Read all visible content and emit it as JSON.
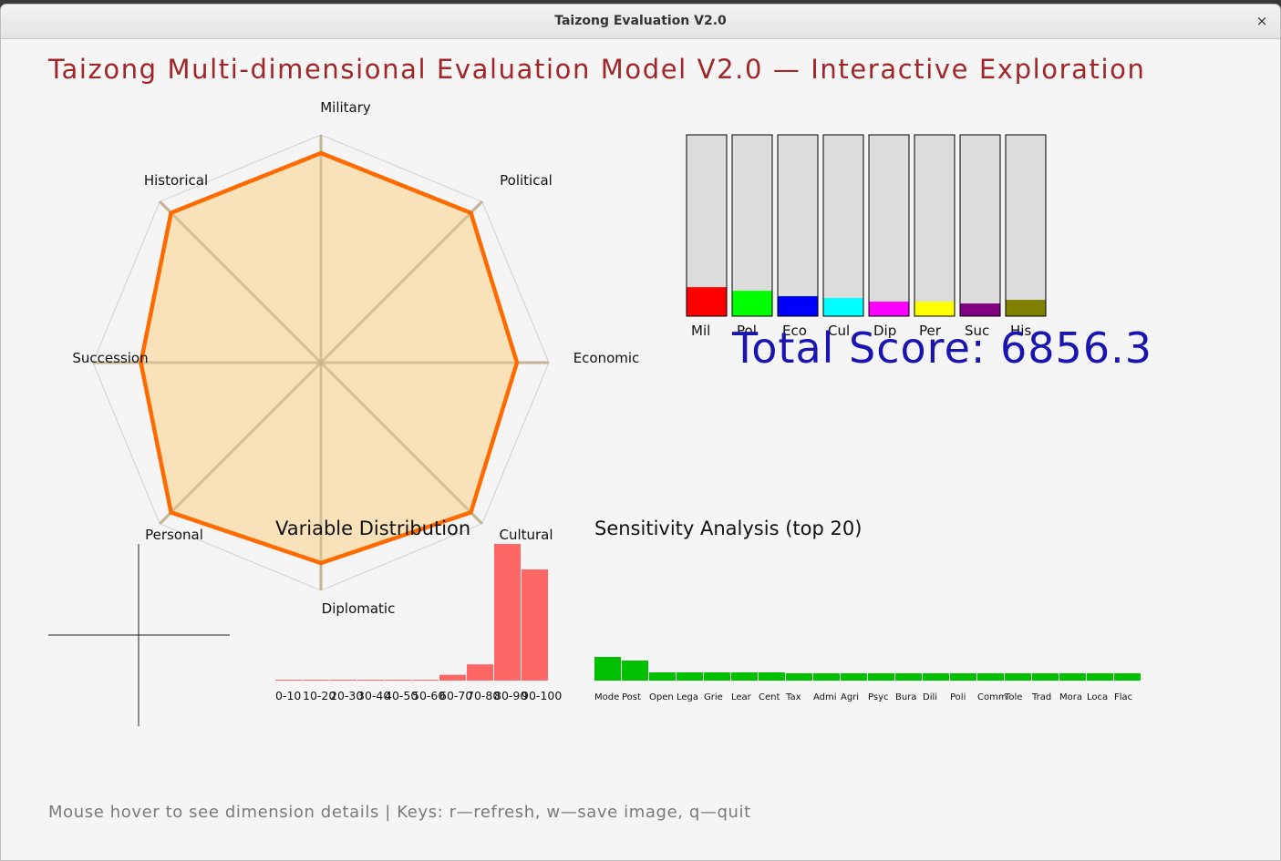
{
  "window": {
    "title": "Taizong Evaluation V2.0",
    "close_glyph": "×"
  },
  "page_title": "Taizong Multi-dimensional Evaluation Model V2.0 — Interactive Exploration",
  "total_score": {
    "label": "Total Score:",
    "value": "6856.3"
  },
  "footer_hint": "Mouse hover to see dimension details | Keys: r—refresh, w—save image, q—quit",
  "radar": {
    "axes": [
      "Military",
      "Political",
      "Economic",
      "Cultural",
      "Diplomatic",
      "Personal",
      "Succession",
      "Historical"
    ],
    "values": [
      0.92,
      0.93,
      0.86,
      0.93,
      0.88,
      0.93,
      0.79,
      0.93
    ],
    "rings": 5,
    "fill_color": "#f9e2b9",
    "line_color": "#ff6a00"
  },
  "dimension_bars": {
    "labels": [
      "Mil",
      "Pol",
      "Eco",
      "Cul",
      "Dip",
      "Per",
      "Suc",
      "His"
    ],
    "values": [
      0.16,
      0.14,
      0.11,
      0.1,
      0.08,
      0.08,
      0.07,
      0.09
    ],
    "colors": [
      "#ff0000",
      "#00ff00",
      "#0000ff",
      "#00ffff",
      "#ff00ff",
      "#ffff00",
      "#800080",
      "#808000"
    ],
    "track_color": "#dcdcdc"
  },
  "variable_distribution": {
    "title": "Variable Distribution",
    "bins": [
      "0-10",
      "10-20",
      "20-30",
      "30-40",
      "40-50",
      "50-60",
      "60-70",
      "70-80",
      "80-90",
      "90-100"
    ],
    "counts": [
      0.3,
      0.3,
      0.3,
      0.3,
      0.3,
      0.3,
      2.5,
      7,
      59,
      48
    ],
    "ymax": 59,
    "bar_color": "#ff6666"
  },
  "sensitivity": {
    "title": "Sensitivity Analysis (top 20)",
    "labels": [
      "Mode",
      "Post",
      "Open",
      "Lega",
      "Grie",
      "Lear",
      "Cent",
      "Tax",
      "Admi",
      "Agri",
      "Psyc",
      "Bura",
      "Dili",
      "Poli",
      "Comm",
      "Tole",
      "Trad",
      "Mora",
      "Loca",
      "Flac"
    ],
    "values": [
      26,
      22,
      9,
      9,
      9,
      9,
      9,
      8,
      8,
      8,
      8,
      8,
      8,
      8,
      8,
      8,
      8,
      8,
      8,
      8
    ],
    "vmax": 26,
    "bar_color": "#00c000"
  }
}
